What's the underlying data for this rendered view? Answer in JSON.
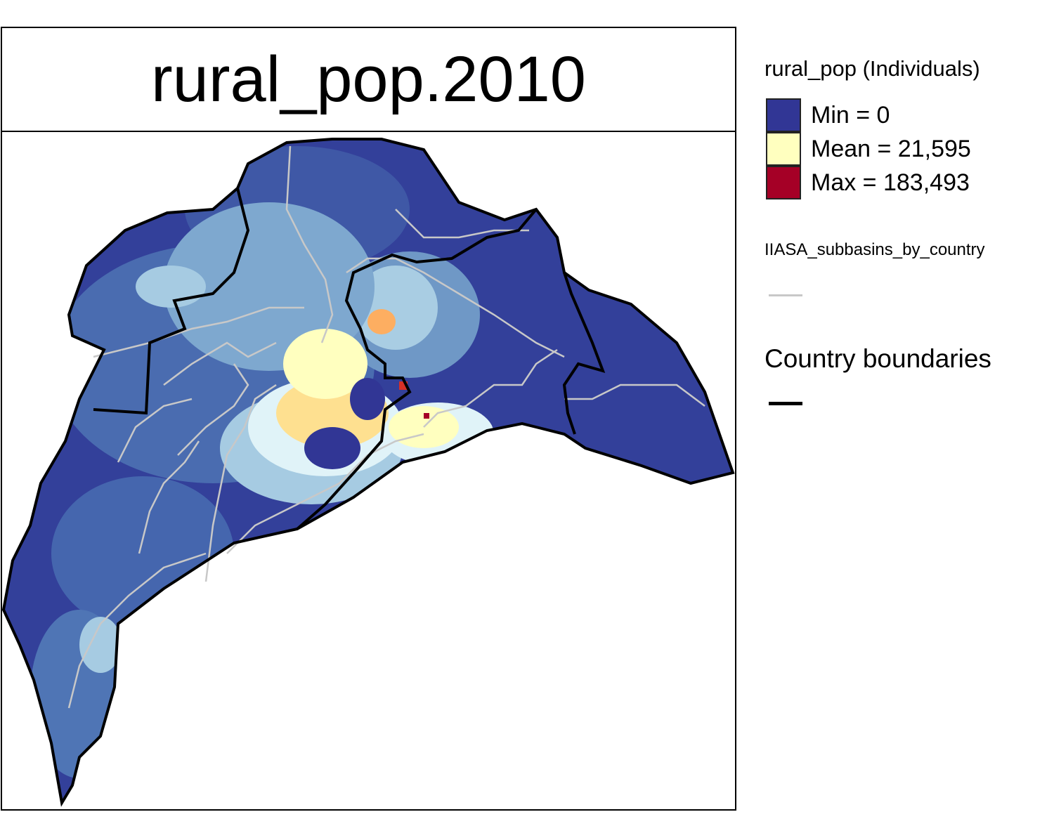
{
  "map": {
    "title": "rural_pop.2010"
  },
  "legend": {
    "raster_heading": "rural_pop (Individuals)",
    "entries": [
      {
        "label": "Min = 0",
        "color": "#313695"
      },
      {
        "label": "Mean = 21,595",
        "color": "#ffffbf"
      },
      {
        "label": "Max = 183,493",
        "color": "#a50026"
      }
    ],
    "subbasins_label": "IIASA_subbasins_by_country",
    "subbasins_color": "#c8c8c8",
    "country_label": "Country boundaries",
    "country_color": "#000000"
  }
}
